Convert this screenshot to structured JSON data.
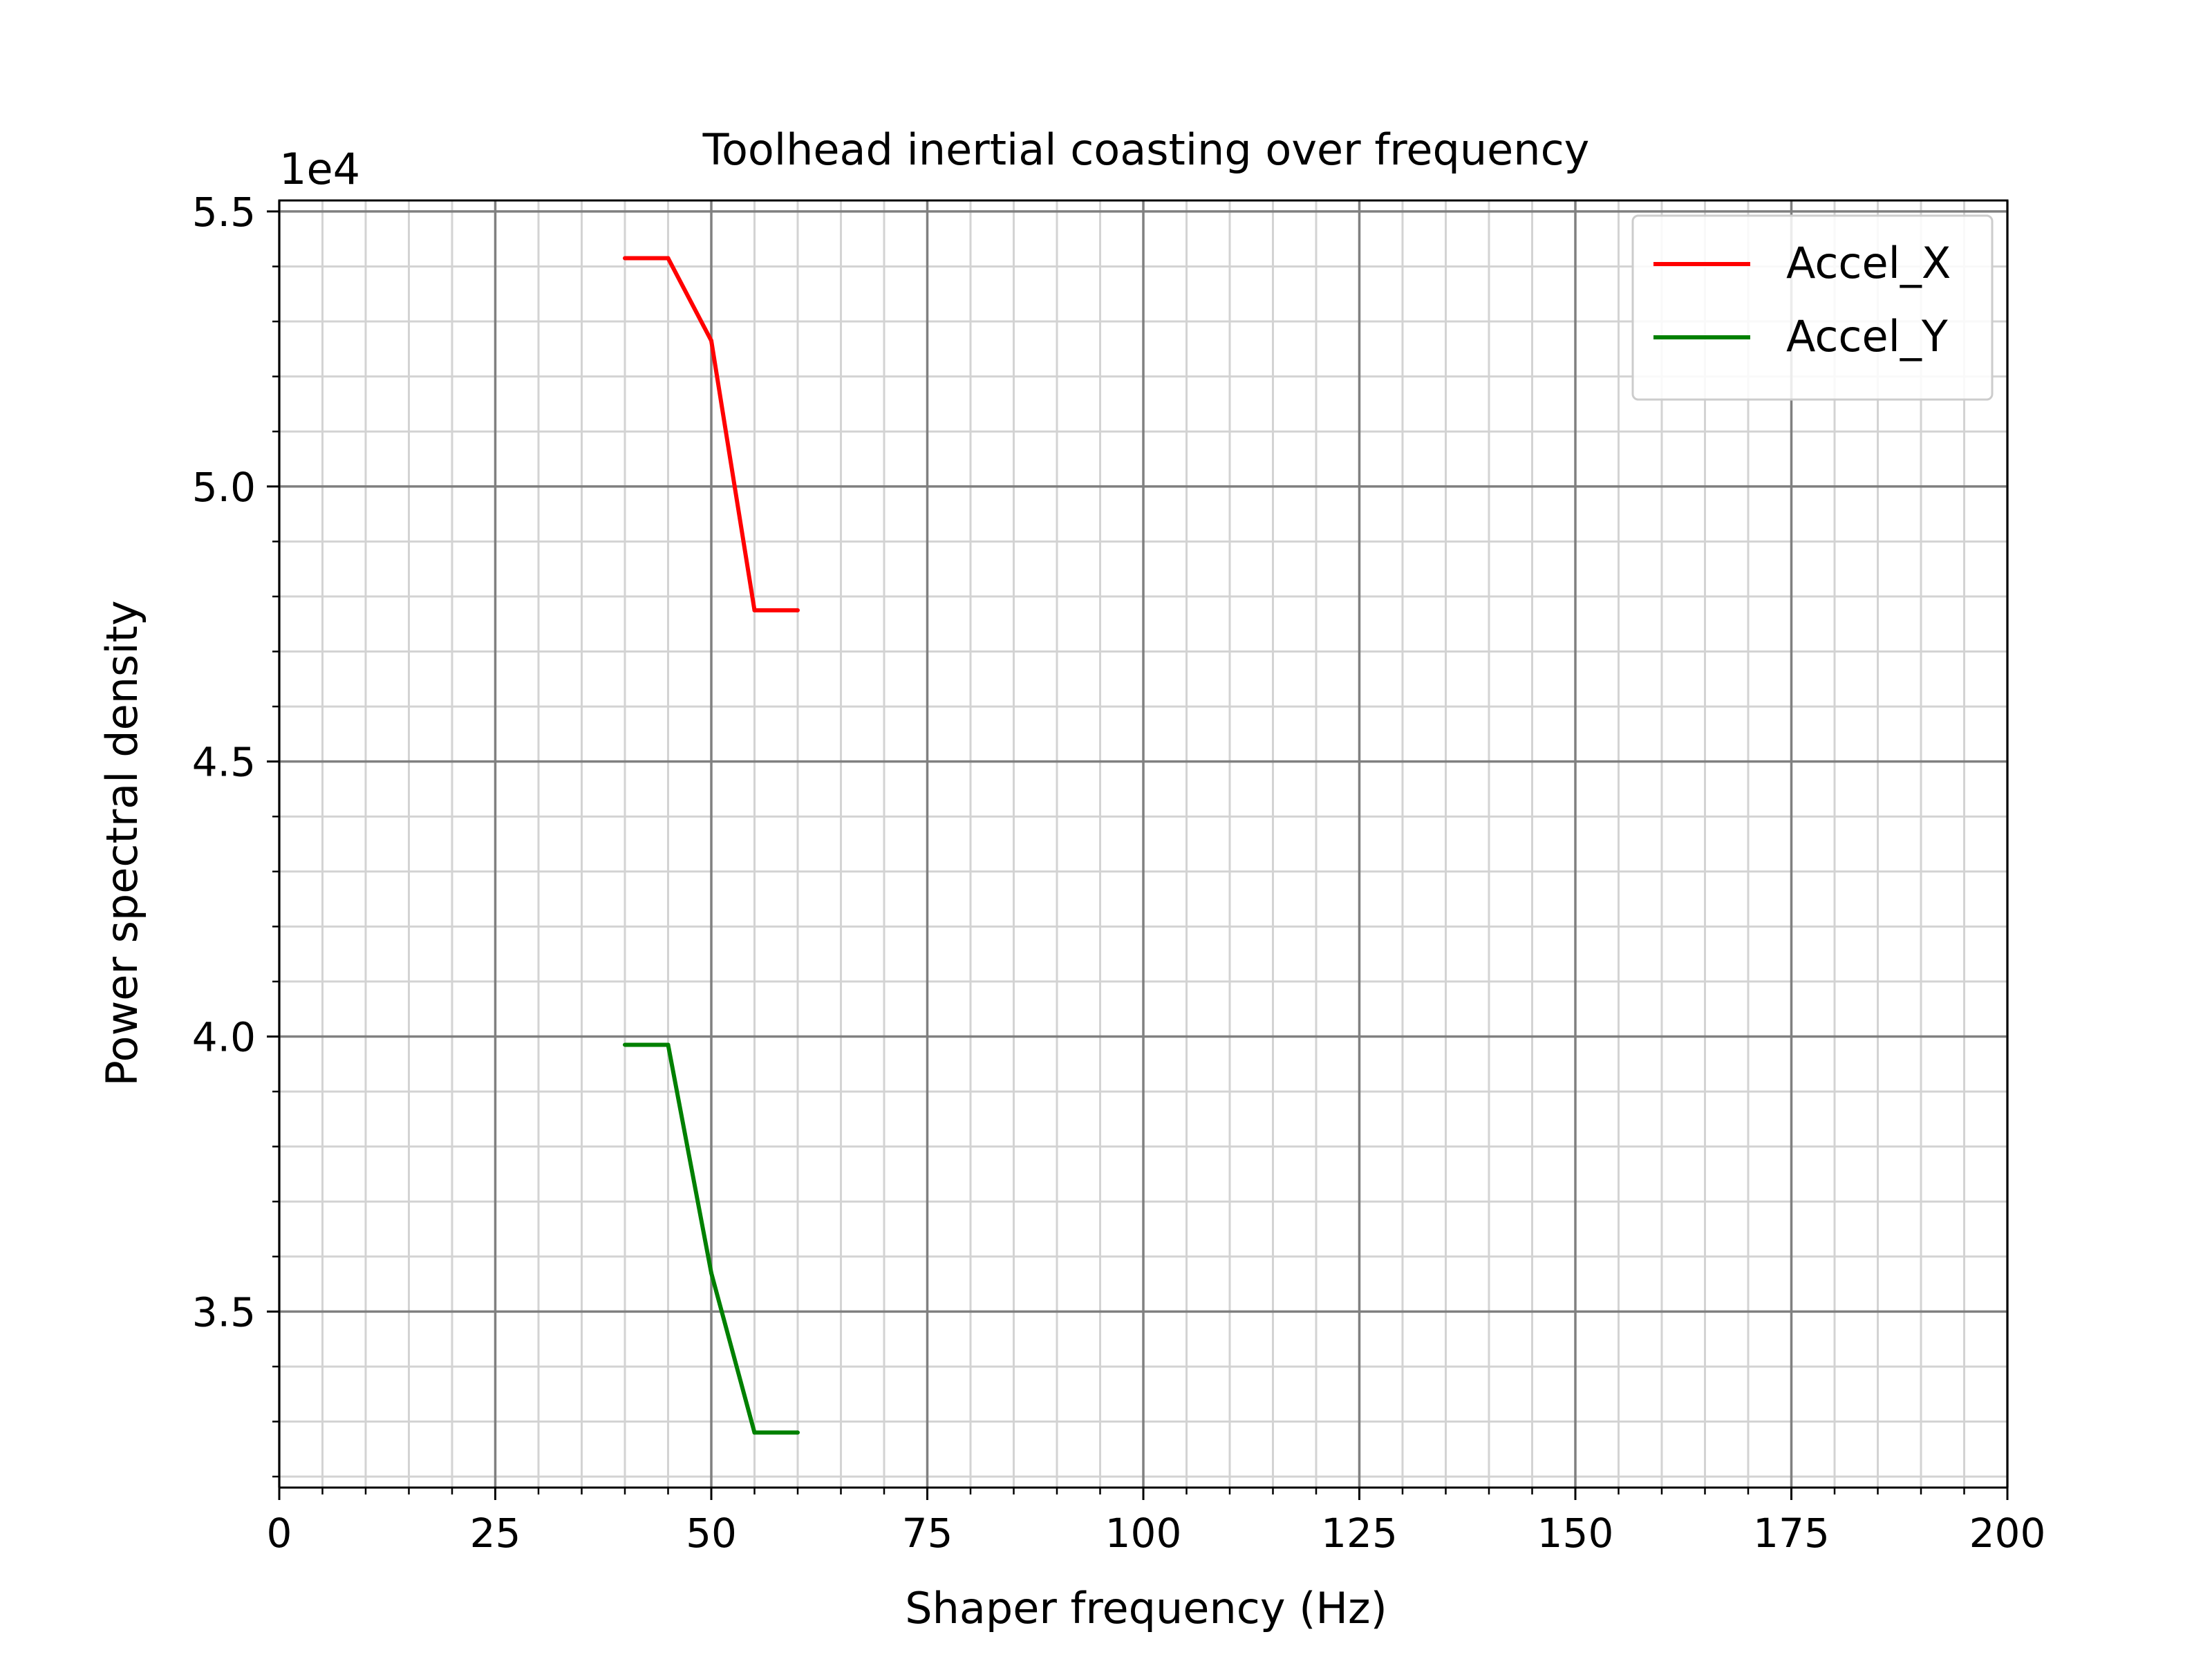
{
  "chart_data": {
    "type": "line",
    "title": "Toolhead inertial coasting over frequency",
    "xlabel": "Shaper frequency (Hz)",
    "ylabel": "Power spectral density",
    "y_offset_label": "1e4",
    "xlim": [
      0,
      200
    ],
    "ylim": [
      31800,
      55200
    ],
    "x_ticks": [
      0,
      25,
      50,
      75,
      100,
      125,
      150,
      175,
      200
    ],
    "x_tick_labels": [
      "0",
      "25",
      "50",
      "75",
      "100",
      "125",
      "150",
      "175",
      "200"
    ],
    "y_ticks": [
      35000,
      40000,
      45000,
      50000,
      55000
    ],
    "y_tick_labels": [
      "3.5",
      "4.0",
      "4.5",
      "5.0",
      "5.5"
    ],
    "x_minor_step": 5,
    "y_minor_step": 1000,
    "grid": {
      "major": true,
      "minor": true,
      "major_color": "#808080",
      "minor_color": "#d3d3d3"
    },
    "legend_position": "top-right",
    "series": [
      {
        "name": "Accel_X",
        "color": "#ff0000",
        "x": [
          40,
          45,
          50,
          55,
          60
        ],
        "y": [
          54150,
          54150,
          52650,
          47750,
          47750
        ]
      },
      {
        "name": "Accel_Y",
        "color": "#008000",
        "x": [
          40,
          45,
          50,
          55,
          60
        ],
        "y": [
          39850,
          39850,
          35700,
          32800,
          32800
        ]
      }
    ]
  }
}
